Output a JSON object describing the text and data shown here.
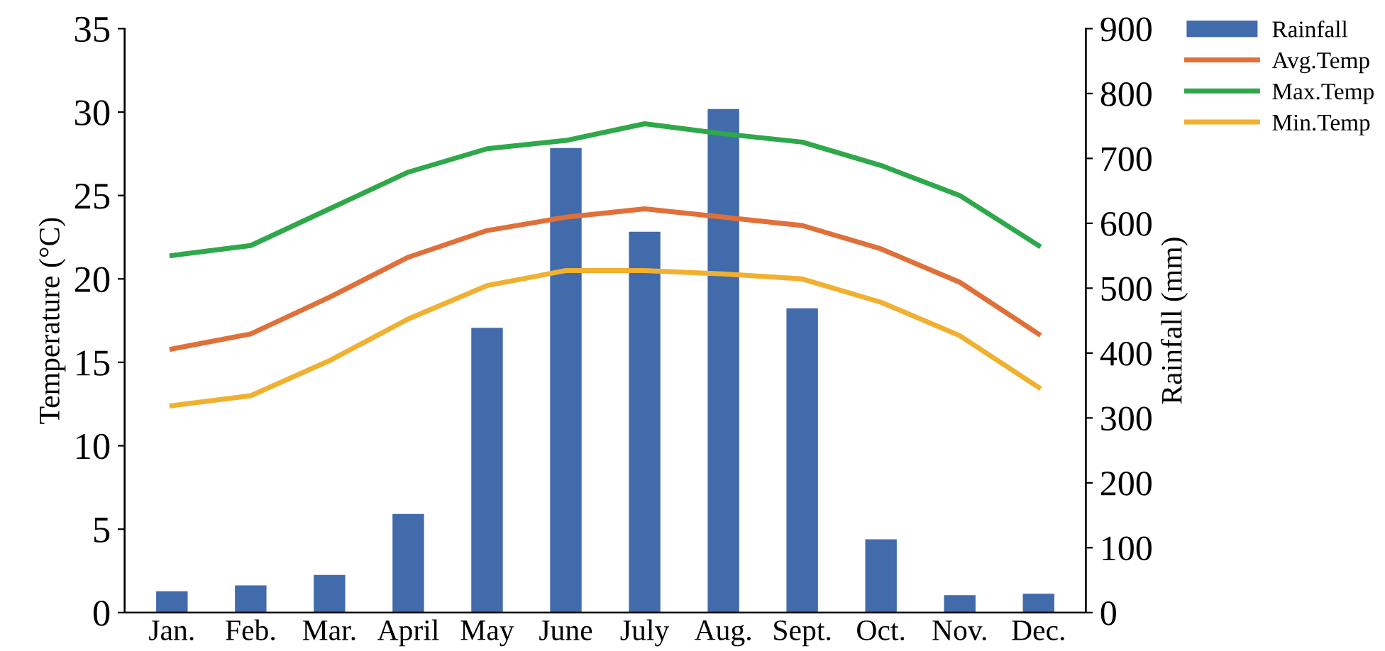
{
  "chart_data": {
    "type": "line",
    "categories": [
      "Jan.",
      "Feb.",
      "Mar.",
      "April",
      "May",
      "June",
      "July",
      "Aug.",
      "Sept.",
      "Oct.",
      "Nov.",
      "Dec."
    ],
    "ylabel": "Temperature (°C)",
    "y2label": "Rainfall (mm)",
    "ylim": [
      0,
      35
    ],
    "yticks": [
      0,
      5,
      10,
      15,
      20,
      25,
      30,
      35
    ],
    "y2lim": [
      0,
      900
    ],
    "y2ticks": [
      0,
      100,
      200,
      300,
      400,
      500,
      600,
      700,
      800,
      900
    ],
    "grid": false,
    "legend": "top right",
    "marker": "none",
    "line_style": "solid",
    "series": [
      {
        "name": "Rainfall",
        "type": "bar",
        "axis": "y2",
        "color": "#416bab",
        "values": [
          33,
          42,
          58,
          152,
          439,
          716,
          587,
          776,
          469,
          113,
          27,
          29
        ]
      },
      {
        "name": "Avg.Temp",
        "color": "#e0703a",
        "values": [
          15.8,
          16.7,
          18.9,
          21.3,
          22.9,
          23.7,
          24.2,
          23.7,
          23.2,
          21.8,
          19.8,
          16.7
        ]
      },
      {
        "name": "Max.Temp",
        "color": "#2ea84a",
        "values": [
          21.4,
          22.0,
          24.2,
          26.4,
          27.8,
          28.3,
          29.3,
          28.7,
          28.2,
          26.8,
          25.0,
          22.0
        ]
      },
      {
        "name": "Min.Temp",
        "color": "#f0b030",
        "values": [
          12.4,
          13.0,
          15.1,
          17.6,
          19.6,
          20.5,
          20.5,
          20.3,
          20.0,
          18.6,
          16.6,
          13.5
        ]
      }
    ]
  }
}
